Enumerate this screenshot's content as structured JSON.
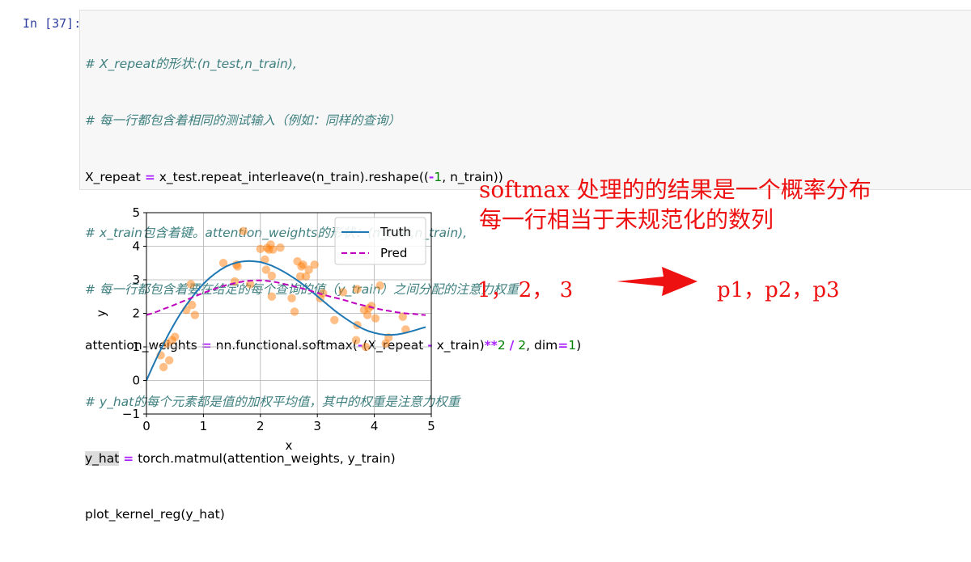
{
  "cell": {
    "prompt": "In [37]:",
    "lines": [
      {
        "comment": "# X_repeat的形状:(n_test,n_train),"
      },
      {
        "comment": "# 每一行都包含着相同的测试输入（例如：同样的查询）"
      },
      {
        "a": "X_repeat ",
        "op1": "=",
        "b": " x_test.repeat_interleave(n_train).reshape((",
        "op2": "-",
        "n1": "1",
        "c": ", n_train))"
      },
      {
        "comment": "# x_train包含着键。attention_weights的形状：(n_test,n_train),"
      },
      {
        "comment": "# 每一行都包含着要在给定的每个查询的值（y_train）之间分配的注意力权重"
      },
      {
        "a": "attention_weights ",
        "op1": "=",
        "b": " nn.functional.softmax(",
        "op2": "-",
        "c": "(X_repeat ",
        "op3": "-",
        "d": " x_train)",
        "op4": "**",
        "n1": "2",
        "e": " ",
        "op5": "/",
        "f": " ",
        "n2": "2",
        "g": ", dim",
        "op6": "=",
        "n3": "1",
        "h": ")"
      },
      {
        "comment": "# y_hat的每个元素都是值的加权平均值，其中的权重是注意力权重"
      },
      {
        "hl": "y_hat",
        "a": " ",
        "op1": "=",
        "b": " torch.matmul(attention_weights, y_train)"
      },
      {
        "a": "plot_kernel_reg(y_hat)"
      }
    ]
  },
  "annotations": {
    "line1": "softmax 处理的的结果是一个概率分布",
    "line2": "每一行相当于未规范化的数列",
    "seq_left": "1， 2， 3",
    "seq_right": "p1，p2，p3"
  },
  "colors": {
    "truth": "#1f77b4",
    "pred": "#bf00bf",
    "points": "#ff7f0e",
    "annotation": "#ee1111",
    "comment": "#408080",
    "operator": "#aa22ff",
    "number": "#008000"
  },
  "chart_data": {
    "type": "line",
    "xlabel": "x",
    "ylabel": "y",
    "xlim": [
      0,
      5
    ],
    "ylim": [
      -1,
      5
    ],
    "xticks": [
      0,
      1,
      2,
      3,
      4,
      5
    ],
    "yticks": [
      -1,
      0,
      1,
      2,
      3,
      4,
      5
    ],
    "grid": true,
    "legend_position": "top-right",
    "series": [
      {
        "name": "Truth",
        "style": "solid",
        "x": [
          0,
          0.1,
          0.2,
          0.3,
          0.4,
          0.5,
          0.6,
          0.7,
          0.8,
          0.9,
          1,
          1.1,
          1.2,
          1.3,
          1.4,
          1.5,
          1.6,
          1.7,
          1.8,
          1.9,
          2,
          2.1,
          2.2,
          2.3,
          2.4,
          2.5,
          2.6,
          2.7,
          2.8,
          2.9,
          3,
          3.1,
          3.2,
          3.3,
          3.4,
          3.5,
          3.6,
          3.7,
          3.8,
          3.9,
          4,
          4.1,
          4.2,
          4.3,
          4.4,
          4.5,
          4.6,
          4.7,
          4.8,
          4.9
        ],
        "y": [
          0,
          0.38,
          0.75,
          1.09,
          1.42,
          1.72,
          2.0,
          2.25,
          2.48,
          2.69,
          2.88,
          3.04,
          3.18,
          3.3,
          3.4,
          3.47,
          3.52,
          3.55,
          3.56,
          3.55,
          3.53,
          3.48,
          3.42,
          3.34,
          3.25,
          3.15,
          3.04,
          2.92,
          2.79,
          2.65,
          2.51,
          2.37,
          2.23,
          2.09,
          1.96,
          1.84,
          1.73,
          1.63,
          1.54,
          1.47,
          1.42,
          1.38,
          1.36,
          1.36,
          1.37,
          1.4,
          1.44,
          1.49,
          1.54,
          1.59
        ]
      },
      {
        "name": "Pred",
        "style": "dashed",
        "x": [
          0,
          0.1,
          0.2,
          0.3,
          0.4,
          0.5,
          0.6,
          0.7,
          0.8,
          0.9,
          1,
          1.1,
          1.2,
          1.3,
          1.4,
          1.5,
          1.6,
          1.7,
          1.8,
          1.9,
          2,
          2.1,
          2.2,
          2.3,
          2.4,
          2.5,
          2.6,
          2.7,
          2.8,
          2.9,
          3,
          3.1,
          3.2,
          3.3,
          3.4,
          3.5,
          3.6,
          3.7,
          3.8,
          3.9,
          4,
          4.1,
          4.2,
          4.3,
          4.4,
          4.5,
          4.6,
          4.7,
          4.8,
          4.9
        ],
        "y": [
          1.95,
          2.0,
          2.06,
          2.13,
          2.19,
          2.26,
          2.33,
          2.4,
          2.47,
          2.54,
          2.61,
          2.67,
          2.73,
          2.79,
          2.84,
          2.88,
          2.92,
          2.95,
          2.97,
          2.98,
          2.98,
          2.97,
          2.95,
          2.92,
          2.88,
          2.84,
          2.8,
          2.76,
          2.71,
          2.66,
          2.61,
          2.56,
          2.51,
          2.47,
          2.43,
          2.38,
          2.33,
          2.28,
          2.24,
          2.2,
          2.16,
          2.12,
          2.09,
          2.06,
          2.03,
          2.01,
          1.99,
          1.98,
          1.96,
          1.95
        ]
      }
    ],
    "scatter": {
      "x": [
        0.25,
        0.3,
        0.35,
        0.4,
        0.45,
        0.5,
        0.7,
        0.78,
        0.8,
        0.85,
        1.35,
        1.55,
        1.58,
        1.6,
        1.7,
        1.82,
        2.0,
        2.08,
        2.1,
        2.12,
        2.15,
        2.18,
        2.2,
        2.2,
        2.22,
        2.35,
        2.55,
        2.6,
        2.65,
        2.7,
        2.72,
        2.75,
        2.8,
        2.85,
        2.95,
        3.05,
        3.1,
        3.3,
        3.45,
        3.68,
        3.7,
        3.7,
        3.82,
        3.85,
        3.88,
        3.9,
        3.95,
        4.02,
        4.1,
        4.2,
        4.25,
        4.5,
        4.55
      ],
      "y": [
        0.75,
        0.4,
        1.1,
        0.6,
        1.2,
        1.3,
        2.1,
        2.87,
        2.25,
        1.95,
        3.5,
        2.95,
        3.45,
        3.4,
        4.45,
        2.87,
        3.92,
        3.6,
        3.3,
        3.95,
        3.9,
        4.05,
        3.12,
        2.5,
        3.9,
        3.96,
        2.45,
        2.05,
        3.55,
        3.1,
        3.4,
        3.45,
        3.1,
        3.3,
        3.45,
        2.45,
        2.6,
        1.8,
        2.63,
        1.2,
        1.65,
        2.72,
        2.1,
        1.0,
        1.95,
        2.15,
        2.22,
        1.85,
        2.83,
        1.1,
        1.28,
        1.9,
        1.52
      ]
    }
  }
}
